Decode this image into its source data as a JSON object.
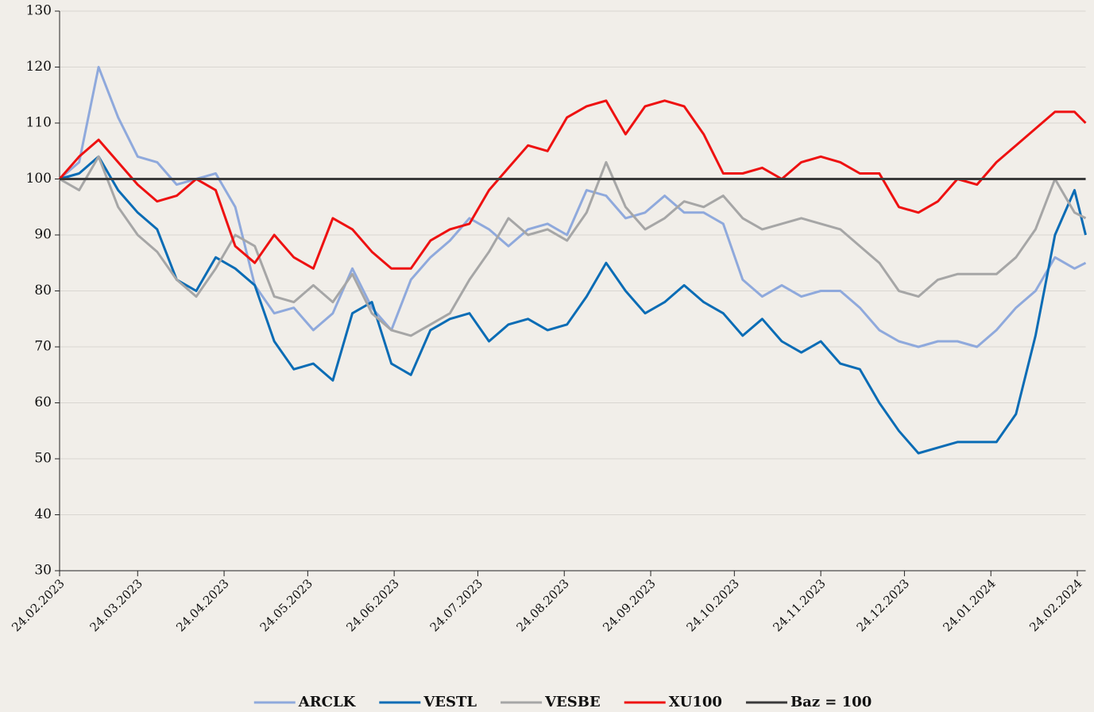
{
  "chart_data": {
    "type": "line",
    "x": [
      "24.02.2023",
      "03.03.2023",
      "10.03.2023",
      "17.03.2023",
      "24.03.2023",
      "31.03.2023",
      "07.04.2023",
      "14.04.2023",
      "21.04.2023",
      "28.04.2023",
      "05.05.2023",
      "12.05.2023",
      "19.05.2023",
      "26.05.2023",
      "02.06.2023",
      "09.06.2023",
      "16.06.2023",
      "23.06.2023",
      "30.06.2023",
      "07.07.2023",
      "14.07.2023",
      "21.07.2023",
      "28.07.2023",
      "04.08.2023",
      "11.08.2023",
      "18.08.2023",
      "25.08.2023",
      "01.09.2023",
      "08.09.2023",
      "15.09.2023",
      "22.09.2023",
      "29.09.2023",
      "06.10.2023",
      "13.10.2023",
      "20.10.2023",
      "27.10.2023",
      "03.11.2023",
      "10.11.2023",
      "17.11.2023",
      "24.11.2023",
      "01.12.2023",
      "08.12.2023",
      "15.12.2023",
      "22.12.2023",
      "29.12.2023",
      "05.01.2024",
      "12.01.2024",
      "19.01.2024",
      "26.01.2024",
      "02.02.2024",
      "09.02.2024",
      "16.02.2024",
      "23.02.2024",
      "27.02.2024"
    ],
    "series": [
      {
        "name": "ARCLK",
        "color": "#8fa9dc",
        "values": [
          100,
          103,
          120,
          111,
          104,
          103,
          99,
          100,
          101,
          95,
          81,
          76,
          77,
          73,
          76,
          84,
          77,
          73,
          82,
          86,
          89,
          93,
          91,
          88,
          91,
          92,
          90,
          98,
          97,
          93,
          94,
          97,
          94,
          94,
          92,
          82,
          79,
          81,
          79,
          80,
          80,
          77,
          73,
          71,
          70,
          71,
          71,
          70,
          73,
          77,
          80,
          86,
          84,
          85
        ]
      },
      {
        "name": "VESTL",
        "color": "#0a6cb5",
        "values": [
          100,
          101,
          104,
          98,
          94,
          91,
          82,
          80,
          86,
          84,
          81,
          71,
          66,
          67,
          64,
          76,
          78,
          67,
          65,
          73,
          75,
          76,
          71,
          74,
          75,
          73,
          74,
          79,
          85,
          80,
          76,
          78,
          81,
          78,
          76,
          72,
          75,
          71,
          69,
          71,
          67,
          66,
          60,
          55,
          51,
          52,
          53,
          53,
          53,
          58,
          72,
          90,
          98,
          90
        ]
      },
      {
        "name": "VESBE",
        "color": "#a6a6a6",
        "values": [
          100,
          98,
          104,
          95,
          90,
          87,
          82,
          79,
          84,
          90,
          88,
          79,
          78,
          81,
          78,
          83,
          76,
          73,
          72,
          74,
          76,
          82,
          87,
          93,
          90,
          91,
          89,
          94,
          103,
          95,
          91,
          93,
          96,
          95,
          97,
          93,
          91,
          92,
          93,
          92,
          91,
          88,
          85,
          80,
          79,
          82,
          83,
          83,
          83,
          86,
          91,
          100,
          94,
          93
        ]
      },
      {
        "name": "XU100",
        "color": "#ee1111",
        "values": [
          100,
          104,
          107,
          103,
          99,
          96,
          97,
          100,
          98,
          88,
          85,
          90,
          86,
          84,
          93,
          91,
          87,
          84,
          84,
          89,
          91,
          92,
          98,
          102,
          106,
          105,
          111,
          113,
          114,
          108,
          113,
          114,
          113,
          108,
          101,
          101,
          102,
          100,
          103,
          104,
          103,
          101,
          101,
          95,
          94,
          96,
          100,
          99,
          103,
          106,
          109,
          112,
          112,
          110
        ]
      }
    ],
    "reference_line": {
      "name": "Baz = 100",
      "value": 100,
      "color": "#3a3a3a"
    },
    "xlim": [
      "24.02.2023",
      "27.02.2024"
    ],
    "xticks": [
      "24.02.2023",
      "24.03.2023",
      "24.04.2023",
      "24.05.2023",
      "24.06.2023",
      "24.07.2023",
      "24.08.2023",
      "24.09.2023",
      "24.10.2023",
      "24.11.2023",
      "24.12.2023",
      "24.01.2024",
      "24.02.2024"
    ],
    "ylim": [
      30,
      130
    ],
    "yticks": [
      30,
      40,
      50,
      60,
      70,
      80,
      90,
      100,
      110,
      120,
      130
    ],
    "grid": true,
    "legend": "bottom"
  }
}
